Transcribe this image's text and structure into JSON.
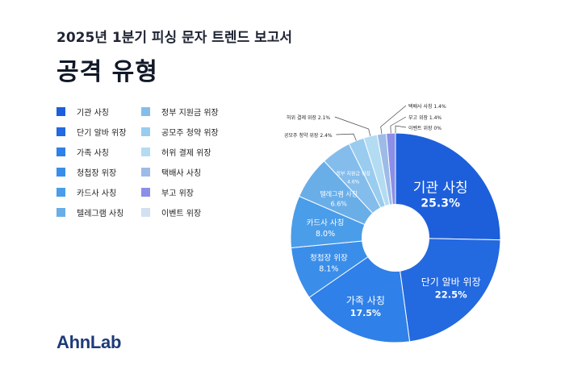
{
  "header": {
    "subtitle": "2025년 1분기 피싱 문자 트렌드 보고서",
    "title": "공격 유형"
  },
  "brand": {
    "logo_text": "AhnLab"
  },
  "chart_data": {
    "type": "pie",
    "hole": true,
    "legend_position": "left",
    "categories": [
      "기관 사칭",
      "단기 알바 위장",
      "가족 사칭",
      "청첩장 위장",
      "카드사 사칭",
      "텔레그램 사칭",
      "정부 지원금 위장",
      "공모주 청약 위장",
      "허위 결제 위장",
      "택배사 사칭",
      "부고 위장",
      "이벤트 위장"
    ],
    "values": [
      25.3,
      22.5,
      17.5,
      8.1,
      8.0,
      6.6,
      4.6,
      2.4,
      2.1,
      1.4,
      1.4,
      0
    ],
    "value_labels": [
      "25.3%",
      "22.5%",
      "17.5%",
      "8.1%",
      "8.0%",
      "6.6%",
      "4.6%",
      "2.4%",
      "2.1%",
      "1.4%",
      "1.4%",
      "0%"
    ],
    "slice_labels": [
      "기관 사칭",
      "단기 알바 위장",
      "가족 사칭",
      "청첩장 위장",
      "카드사 사칭",
      "텔레그램 사칭",
      "정부 지원금 위장",
      "공모주 청약 위장",
      "허위 결제 위장",
      "택배사 사칭",
      "부고 위장",
      "이벤트 위장"
    ],
    "colors": [
      "#1d5fdb",
      "#2369e0",
      "#2f80e8",
      "#3a8ee9",
      "#4a9de9",
      "#6aaee8",
      "#84bdec",
      "#99ccef",
      "#b3dcf3",
      "#9dbbe7",
      "#8b8fe8",
      "#d2e0f2"
    ]
  }
}
